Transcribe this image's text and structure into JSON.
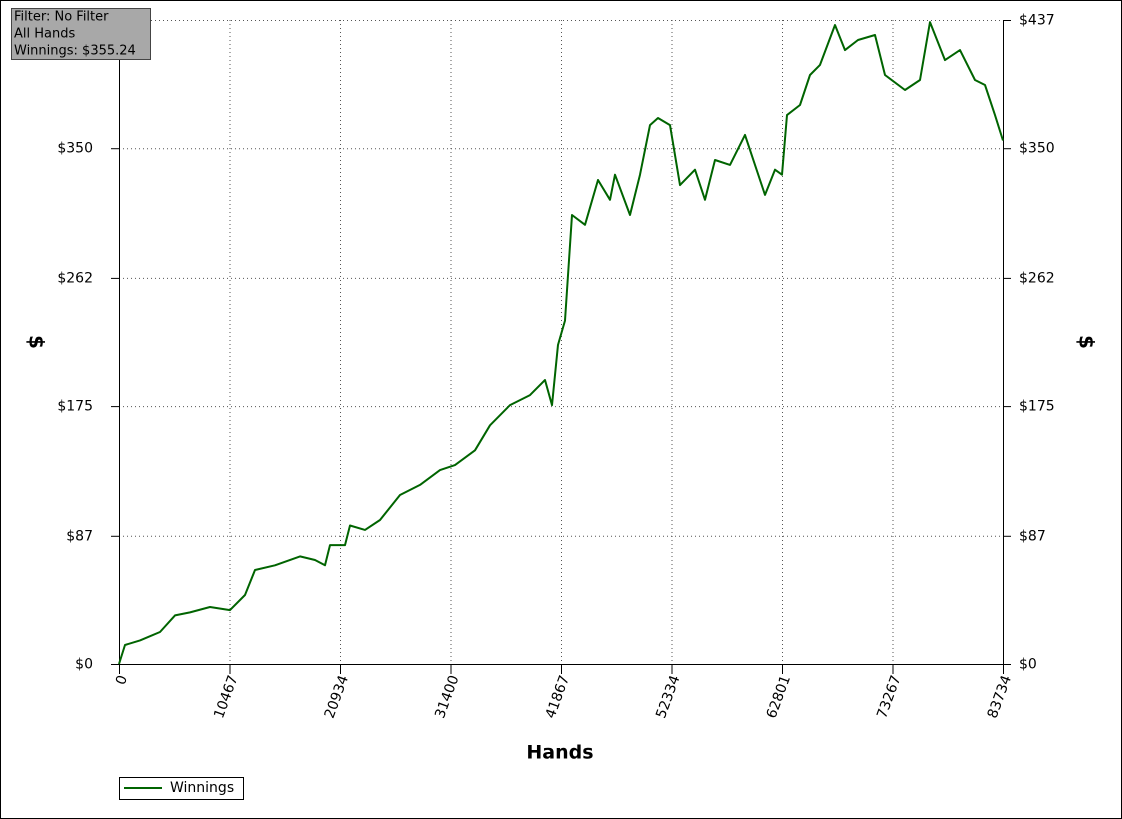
{
  "chart_data": {
    "type": "line",
    "annotations": [
      "Filter: No Filter",
      "All Hands",
      "Winnings: $355.24"
    ],
    "x_label": "Hands",
    "y_label": "$",
    "y2_label": "$",
    "x": [
      0,
      568,
      1989,
      3884,
      5304,
      6725,
      8620,
      10514,
      11935,
      12882,
      14777,
      17145,
      18565,
      19513,
      19986,
      21407,
      21880,
      23301,
      24722,
      26616,
      28511,
      30405,
      31826,
      33720,
      35141,
      37035,
      38930,
      40351,
      41014,
      41582,
      42245,
      42908,
      44140,
      45371,
      46508,
      46981,
      48402,
      49349,
      50296,
      51054,
      52191,
      53138,
      54559,
      55506,
      56453,
      57874,
      59295,
      60242,
      61189,
      62136,
      62799,
      63272,
      64509,
      65457,
      66404,
      67825,
      68772,
      70003,
      71613,
      72560,
      74455,
      75875,
      76822,
      78243,
      79664,
      81085,
      82032,
      82979,
      83734
    ],
    "series": [
      {
        "name": "Winnings",
        "color": "#006400",
        "values": [
          0,
          12.9,
          16,
          21.7,
          33,
          35,
          38.7,
          36.6,
          46.8,
          63.8,
          67,
          73,
          70.6,
          67,
          80.7,
          80.7,
          94,
          91,
          97.7,
          114.7,
          121.5,
          131.6,
          135,
          145,
          162,
          175.7,
          182.5,
          192.7,
          175.7,
          216.5,
          233,
          304.7,
          298,
          328.4,
          315,
          332,
          304.7,
          332,
          365.7,
          370.5,
          365.7,
          325,
          335.4,
          315,
          342,
          338.7,
          359,
          338.7,
          318.3,
          335.4,
          332,
          372.5,
          379.3,
          399.7,
          406.5,
          433.6,
          416.6,
          423.4,
          426.8,
          399.7,
          389.5,
          396.3,
          435.6,
          409.8,
          416.6,
          396.3,
          392.9,
          372.5,
          355.24
        ]
      }
    ],
    "xlim": [
      0,
      83734
    ],
    "xticks": [
      0,
      10467,
      20934,
      31400,
      41867,
      52334,
      62801,
      73267,
      83734
    ],
    "ylim": [
      0,
      437
    ],
    "yticks": [
      {
        "value": 0,
        "label": "$0"
      },
      {
        "value": 87,
        "label": "$87"
      },
      {
        "value": 175,
        "label": "$175"
      },
      {
        "value": 262,
        "label": "$262"
      },
      {
        "value": 350,
        "label": "$350"
      },
      {
        "value": 437,
        "label": "$437"
      }
    ],
    "grid": true
  }
}
